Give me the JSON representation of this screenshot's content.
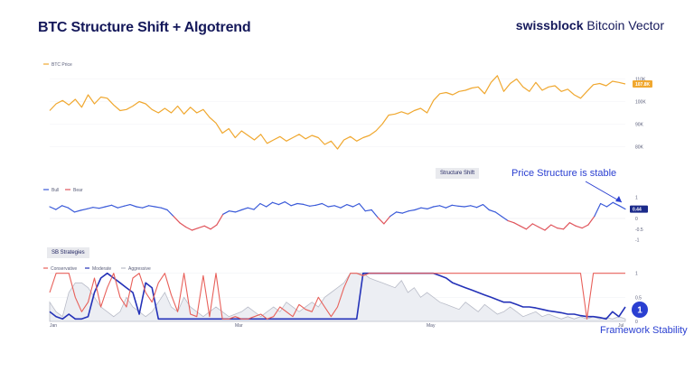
{
  "header": {
    "title": "BTC Structure Shift + Algotrend",
    "brand_bold": "swissblock",
    "brand_rest": " Bitcoin Vector"
  },
  "colors": {
    "price": "#f0a830",
    "bull": "#3b5bd9",
    "bear": "#e0555c",
    "conservative": "#e8605a",
    "moderate": "#2432b8",
    "aggressive": "#b9bcc8",
    "accent": "#2a3fd1"
  },
  "panels": {
    "price_legend": "BTC Price",
    "structure_label": "Structure Shift",
    "structure_bull": "Bull",
    "structure_bear": "Bear",
    "strategies_label": "SB Strategies",
    "strategies_conservative": "Conservative",
    "strategies_moderate": "Moderate",
    "strategies_aggressive": "Aggressive"
  },
  "annotations": {
    "price_structure": "Price Structure is stable",
    "framework_number": "1",
    "framework_label": "Framework Stability"
  },
  "chart_data": [
    {
      "type": "line",
      "name": "BTC Price",
      "y_ticks": [
        "110K",
        "100K",
        "90K",
        "80K"
      ],
      "y_ticks_values": [
        110000,
        100000,
        90000,
        80000
      ],
      "last_value_label": "107.8K",
      "ylim": [
        73000,
        113000
      ],
      "values": [
        96000,
        99000,
        100500,
        98500,
        101000,
        97500,
        103000,
        99000,
        102000,
        101500,
        98500,
        96000,
        96500,
        98000,
        100000,
        99000,
        96500,
        95000,
        97000,
        95000,
        98000,
        94500,
        97500,
        95000,
        96500,
        93000,
        90500,
        86000,
        88000,
        84000,
        87000,
        85000,
        83000,
        85500,
        81500,
        83000,
        84500,
        82500,
        84000,
        85500,
        83500,
        85000,
        84000,
        81000,
        82500,
        79000,
        83000,
        84500,
        82500,
        84000,
        85000,
        87000,
        90000,
        94000,
        94500,
        95500,
        94500,
        96000,
        97000,
        95000,
        100500,
        103500,
        104000,
        103000,
        104500,
        105000,
        106000,
        106500,
        103500,
        108500,
        111500,
        104500,
        108000,
        110000,
        106500,
        104500,
        108500,
        105000,
        106500,
        107000,
        104500,
        105500,
        103000,
        101500,
        104500,
        107500,
        108000,
        107000,
        109000,
        108500,
        107800
      ]
    },
    {
      "type": "line",
      "name": "Structure Shift",
      "y_ticks": [
        "1",
        "0.5",
        "0",
        "-0.5",
        "-1"
      ],
      "ylim": [
        -1.1,
        1.1
      ],
      "last_value_label": "0.44",
      "values": [
        0.55,
        0.42,
        0.6,
        0.5,
        0.3,
        0.38,
        0.45,
        0.52,
        0.48,
        0.55,
        0.62,
        0.5,
        0.58,
        0.65,
        0.55,
        0.5,
        0.6,
        0.55,
        0.5,
        0.4,
        0.1,
        -0.2,
        -0.4,
        -0.55,
        -0.45,
        -0.35,
        -0.5,
        -0.3,
        0.2,
        0.35,
        0.3,
        0.4,
        0.5,
        0.42,
        0.7,
        0.55,
        0.75,
        0.65,
        0.78,
        0.6,
        0.7,
        0.66,
        0.58,
        0.62,
        0.7,
        0.55,
        0.6,
        0.5,
        0.65,
        0.55,
        0.7,
        0.35,
        0.4,
        0.05,
        -0.25,
        0.1,
        0.3,
        0.25,
        0.35,
        0.4,
        0.5,
        0.45,
        0.55,
        0.6,
        0.5,
        0.62,
        0.58,
        0.55,
        0.6,
        0.52,
        0.65,
        0.4,
        0.3,
        0.1,
        -0.1,
        -0.2,
        -0.35,
        -0.5,
        -0.25,
        -0.4,
        -0.55,
        -0.3,
        -0.45,
        -0.5,
        -0.2,
        -0.35,
        -0.45,
        -0.3,
        0.1,
        0.7,
        0.55,
        0.75,
        0.6,
        0.44
      ]
    },
    {
      "type": "area",
      "name": "SB Strategies",
      "x_ticks": [
        "Jan",
        "Mar",
        "May",
        "Jul"
      ],
      "y_ticks": [
        "1",
        "0.5",
        "0"
      ],
      "ylim": [
        0,
        1.05
      ],
      "series": [
        {
          "name": "Conservative",
          "values": [
            0.6,
            1,
            1,
            1,
            0.5,
            0.2,
            0.4,
            0.9,
            0.3,
            0.7,
            1,
            0.5,
            0.3,
            0.9,
            1,
            0.6,
            0.4,
            0.8,
            1,
            0.55,
            0.2,
            1,
            0.15,
            0.1,
            0.95,
            0.1,
            1,
            0.05,
            0.05,
            0.1,
            0.05,
            0.05,
            0.1,
            0.15,
            0.05,
            0.1,
            0.3,
            0.2,
            0.1,
            0.35,
            0.25,
            0.2,
            0.5,
            0.3,
            0.1,
            0.3,
            0.7,
            1,
            1,
            0.95,
            1,
            1,
            1,
            1,
            1,
            1,
            1,
            1,
            1,
            1,
            1,
            1,
            1,
            1,
            1,
            1,
            1,
            1,
            1,
            1,
            1,
            1,
            1,
            1,
            1,
            1,
            1,
            1,
            1,
            1,
            1,
            1,
            1,
            1,
            0.05,
            1,
            1,
            1,
            1,
            1,
            1
          ]
        },
        {
          "name": "Moderate",
          "values": [
            0.2,
            0.1,
            0.05,
            0.15,
            0.05,
            0.05,
            0.1,
            0.6,
            0.9,
            1,
            0.9,
            0.8,
            0.7,
            0.6,
            0.15,
            0.8,
            0.7,
            0.05,
            0.05,
            0.05,
            0.05,
            0.05,
            0.05,
            0.05,
            0.05,
            0.05,
            0.05,
            0.05,
            0.05,
            0.05,
            0.05,
            0.05,
            0.05,
            0.05,
            0.05,
            0.05,
            0.05,
            0.05,
            0.05,
            0.05,
            0.05,
            0.05,
            0.05,
            0.05,
            0.05,
            0.05,
            0.05,
            0.05,
            0.05,
            1,
            1,
            1,
            1,
            1,
            1,
            1,
            1,
            1,
            1,
            1,
            1,
            0.95,
            0.9,
            0.8,
            0.75,
            0.7,
            0.65,
            0.6,
            0.55,
            0.5,
            0.45,
            0.4,
            0.4,
            0.35,
            0.3,
            0.3,
            0.28,
            0.25,
            0.22,
            0.2,
            0.18,
            0.15,
            0.15,
            0.12,
            0.1,
            0.1,
            0.08,
            0.05,
            0.2,
            0.1,
            0.3
          ]
        },
        {
          "name": "Aggressive",
          "values": [
            0.4,
            0.2,
            0.1,
            0.6,
            0.8,
            0.8,
            0.7,
            0.5,
            0.3,
            0.2,
            0.1,
            0.2,
            0.5,
            0.3,
            0.2,
            0.1,
            0.2,
            0.4,
            0.6,
            0.3,
            0.2,
            0.5,
            0.3,
            0.2,
            0.1,
            0.2,
            0.3,
            0.2,
            0.1,
            0.15,
            0.2,
            0.3,
            0.2,
            0.1,
            0.2,
            0.3,
            0.2,
            0.4,
            0.3,
            0.2,
            0.3,
            0.4,
            0.3,
            0.5,
            0.6,
            0.7,
            0.8,
            1,
            1,
            1,
            0.9,
            0.85,
            0.8,
            0.75,
            0.7,
            0.85,
            0.6,
            0.7,
            0.5,
            0.6,
            0.5,
            0.4,
            0.35,
            0.3,
            0.25,
            0.4,
            0.3,
            0.2,
            0.35,
            0.25,
            0.15,
            0.2,
            0.3,
            0.2,
            0.1,
            0.15,
            0.2,
            0.1,
            0.15,
            0.1,
            0.05,
            0.1,
            0.05,
            0.1,
            0.05,
            0.1,
            0.05,
            0.08,
            0.05,
            0.1,
            0.05
          ]
        }
      ]
    }
  ]
}
